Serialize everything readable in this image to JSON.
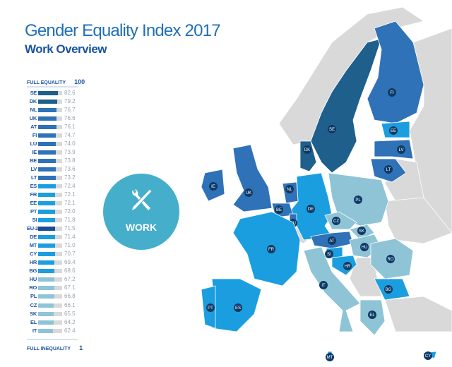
{
  "title": "Gender Equality Index 2017",
  "subtitle": "Work Overview",
  "scale": {
    "top_label": "FULL EQUALITY",
    "top_value": "100",
    "bottom_label": "FULL INEQUALITY",
    "bottom_value": "1"
  },
  "badge": {
    "label": "WORK",
    "icon": "wrench-pencil-icon",
    "color": "#45aecb"
  },
  "colors": {
    "top": "#1f5f8b",
    "high": "#2f72b8",
    "mid": "#1a9ee0",
    "low": "#8ec4d6",
    "eu": "#1a4a9a",
    "track": "#d9d9d9",
    "non_eu": "#d9d9d9"
  },
  "chart_data": {
    "type": "bar",
    "orientation": "horizontal",
    "xlim": [
      1,
      100
    ],
    "categories": [
      "SE",
      "DK",
      "NL",
      "UK",
      "AT",
      "FI",
      "LU",
      "IE",
      "BE",
      "LV",
      "LT",
      "ES",
      "FR",
      "EE",
      "PT",
      "SI",
      "EU-28",
      "DE",
      "MT",
      "CY",
      "HR",
      "BG",
      "HU",
      "RO",
      "PL",
      "CZ",
      "SK",
      "EL",
      "IT"
    ],
    "values": [
      82.6,
      79.2,
      76.7,
      76.6,
      76.1,
      74.7,
      74.0,
      73.9,
      73.8,
      73.6,
      73.2,
      72.4,
      72.1,
      72.1,
      72.0,
      71.8,
      71.5,
      71.4,
      71.0,
      70.7,
      69.4,
      68.6,
      67.2,
      67.1,
      66.8,
      66.1,
      65.5,
      64.2,
      62.4
    ],
    "labels": [
      "82.6",
      "79.2",
      "76.7",
      "76.6",
      "76.1",
      "74.7",
      "74.0",
      "73.9",
      "73.8",
      "73.6",
      "73.2",
      "72.4",
      "72.1",
      "72.1",
      "72.0",
      "71.8",
      "71.5",
      "71.4",
      "71.0",
      "70.7",
      "69.4",
      "68.6",
      "67.2",
      "67.1",
      "66.8",
      "66.1",
      "65.5",
      "64.2",
      "62.4"
    ]
  }
}
